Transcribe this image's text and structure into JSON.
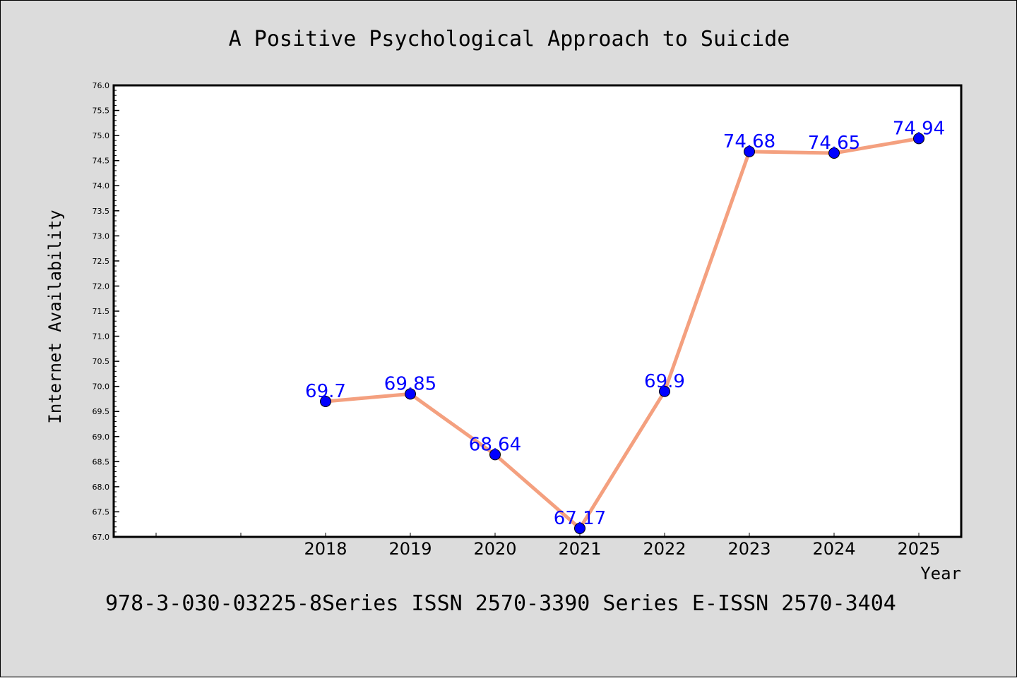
{
  "chart_data": {
    "type": "line",
    "title": "A Positive Psychological Approach to Suicide",
    "footer": "978-3-030-03225-8Series ISSN 2570-3390 Series E-ISSN 2570-3404",
    "xlabel": "Year",
    "ylabel": "Internet Availability",
    "x": [
      "2018",
      "2019",
      "2020",
      "2021",
      "2022",
      "2023",
      "2024",
      "2025"
    ],
    "values": [
      69.7,
      69.85,
      68.64,
      67.17,
      69.9,
      74.68,
      74.65,
      74.94
    ],
    "data_labels": [
      "69.7",
      "69.85",
      "68.64",
      "67.17",
      "69.9",
      "74.68",
      "74.65",
      "74.94"
    ],
    "ylim": [
      67.0,
      76.0
    ],
    "ytick_step": 0.5,
    "grid": false,
    "line_color": "#f4a07f",
    "marker_color": "#0000ff",
    "label_color": "#0000ff"
  }
}
